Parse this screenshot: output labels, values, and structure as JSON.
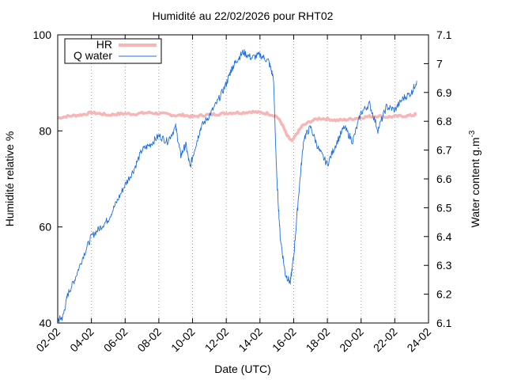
{
  "chart_data": {
    "type": "line",
    "title": "Humidité au 22/02/2026 pour RHT02",
    "xlabel": "Date (UTC)",
    "ylabel_left": "Humidité relative %",
    "ylabel_right_base": "Water content g.m",
    "ylabel_right_sup": "-3",
    "x_ticks": [
      "02-02",
      "04-02",
      "06-02",
      "08-02",
      "10-02",
      "12-02",
      "14-02",
      "16-02",
      "18-02",
      "20-02",
      "22-02",
      "24-02"
    ],
    "xlim_days": [
      2,
      24
    ],
    "y_left_ticks": [
      "40",
      "60",
      "80",
      "100"
    ],
    "ylim_left": [
      40,
      100
    ],
    "y_right_ticks": [
      "6.1",
      "6.2",
      "6.3",
      "6.4",
      "6.5",
      "6.6",
      "6.7",
      "6.8",
      "6.9",
      "7",
      "7.1"
    ],
    "ylim_right": [
      6.1,
      7.1
    ],
    "grid": "vertical-dotted",
    "legend_position": "top-left",
    "series": [
      {
        "name": "HR",
        "axis": "left",
        "color": "#f7b6b6",
        "x": [
          2.0,
          2.5,
          3.0,
          3.5,
          4.0,
          4.5,
          5.0,
          5.5,
          6.0,
          6.5,
          7.0,
          7.5,
          8.0,
          8.5,
          9.0,
          9.5,
          10.0,
          10.5,
          11.0,
          11.5,
          12.0,
          12.5,
          13.0,
          13.5,
          14.0,
          14.5,
          15.0,
          15.3,
          15.6,
          15.9,
          16.2,
          16.5,
          17.0,
          17.5,
          18.0,
          18.5,
          19.0,
          19.5,
          20.0,
          20.5,
          21.0,
          21.5,
          22.0,
          22.5,
          23.0,
          23.3
        ],
        "values": [
          82.7,
          83.0,
          83.2,
          83.4,
          83.8,
          83.6,
          83.3,
          83.5,
          83.6,
          83.5,
          83.7,
          83.8,
          83.6,
          83.5,
          83.2,
          83.3,
          82.9,
          83.2,
          83.4,
          83.5,
          83.7,
          83.8,
          83.8,
          84.0,
          83.8,
          83.6,
          83.0,
          81.5,
          79.0,
          77.8,
          79.5,
          81.0,
          82.0,
          82.6,
          82.5,
          82.2,
          82.3,
          82.5,
          82.8,
          83.0,
          83.1,
          82.9,
          83.0,
          83.1,
          83.2,
          83.5
        ]
      },
      {
        "name": "Q water",
        "axis": "right",
        "color": "#1f6fe0",
        "x": [
          2.0,
          2.3,
          2.6,
          3.0,
          3.5,
          4.0,
          4.5,
          5.0,
          5.5,
          6.0,
          6.5,
          7.0,
          7.5,
          8.0,
          8.5,
          9.0,
          9.3,
          9.6,
          9.85,
          10.2,
          10.5,
          11.0,
          11.5,
          12.0,
          12.3,
          12.6,
          13.0,
          13.5,
          14.0,
          14.5,
          14.8,
          15.0,
          15.2,
          15.5,
          15.8,
          16.0,
          16.3,
          16.6,
          17.0,
          17.5,
          18.0,
          18.5,
          19.0,
          19.5,
          20.0,
          20.5,
          21.0,
          21.5,
          22.0,
          22.5,
          23.0,
          23.3
        ],
        "values": [
          6.11,
          6.12,
          6.2,
          6.25,
          6.33,
          6.4,
          6.43,
          6.46,
          6.52,
          6.58,
          6.63,
          6.7,
          6.72,
          6.75,
          6.73,
          6.78,
          6.68,
          6.72,
          6.64,
          6.72,
          6.78,
          6.82,
          6.87,
          6.93,
          6.98,
          7.01,
          7.04,
          7.02,
          7.03,
          7.01,
          6.95,
          6.6,
          6.4,
          6.27,
          6.24,
          6.33,
          6.55,
          6.74,
          6.78,
          6.7,
          6.65,
          6.72,
          6.78,
          6.73,
          6.83,
          6.86,
          6.77,
          6.85,
          6.84,
          6.88,
          6.9,
          6.94
        ]
      }
    ]
  }
}
